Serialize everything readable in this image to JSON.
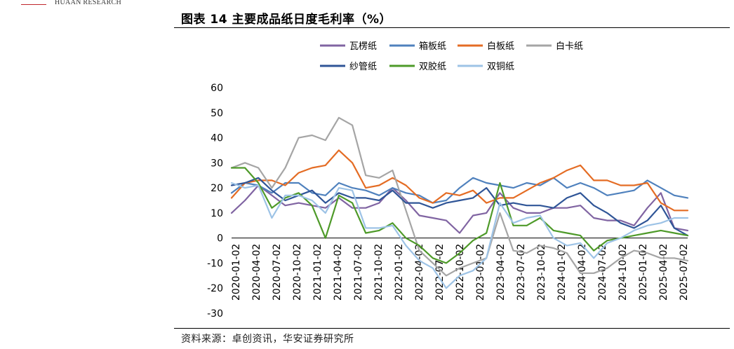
{
  "header": {
    "brand": "HUAAN RESEARCH",
    "title": "图表 14 主要成品纸日度毛利率（%）",
    "source": "资料来源：卓创资讯，华安证券研究所"
  },
  "chart_data": {
    "type": "line",
    "title": "主要成品纸日度毛利率（%）",
    "xlabel": "",
    "ylabel": "",
    "ylim": [
      -30,
      60
    ],
    "yticks": [
      -30,
      -20,
      -10,
      0,
      10,
      20,
      30,
      40,
      50,
      60
    ],
    "x_ticks": [
      "2020-01-02",
      "2020-04-02",
      "2020-07-02",
      "2020-10-02",
      "2021-01-02",
      "2021-04-02",
      "2021-07-02",
      "2021-10-02",
      "2022-01-02",
      "2022-04-02",
      "2022-07-02",
      "2022-10-02",
      "2023-01-02",
      "2023-04-02",
      "2023-07-02",
      "2023-10-02",
      "2024-01-02",
      "2024-04-02",
      "2024-07-02",
      "2024-10-02",
      "2025-01-02",
      "2025-04-02",
      "2025-07-02"
    ],
    "x": [
      "2020-01",
      "2020-03",
      "2020-05",
      "2020-07",
      "2020-09",
      "2020-11",
      "2021-01",
      "2021-03",
      "2021-05",
      "2021-07",
      "2021-09",
      "2021-11",
      "2022-01",
      "2022-03",
      "2022-05",
      "2022-07",
      "2022-09",
      "2022-11",
      "2023-01",
      "2023-03",
      "2023-05",
      "2023-07",
      "2023-09",
      "2023-11",
      "2024-01",
      "2024-03",
      "2024-05",
      "2024-07",
      "2024-09",
      "2024-11",
      "2025-01",
      "2025-03",
      "2025-05",
      "2025-07",
      "2025-08"
    ],
    "series": [
      {
        "name": "瓦楞纸",
        "color": "#8064a2",
        "values": [
          10,
          15,
          21,
          17,
          13,
          14,
          13,
          12,
          16,
          12,
          12,
          14,
          20,
          15,
          9,
          8,
          7,
          2,
          9,
          10,
          18,
          12,
          10,
          10,
          12,
          12,
          13,
          8,
          7,
          7,
          5,
          12,
          18,
          4,
          3
        ]
      },
      {
        "name": "箱板纸",
        "color": "#4f81bd",
        "values": [
          18,
          22,
          21,
          18,
          22,
          22,
          18,
          17,
          22,
          20,
          19,
          17,
          20,
          18,
          17,
          14,
          15,
          20,
          24,
          22,
          21,
          20,
          22,
          21,
          24,
          20,
          22,
          20,
          17,
          18,
          19,
          23,
          20,
          17,
          16
        ]
      },
      {
        "name": "白板纸",
        "color": "#e46c24",
        "values": [
          16,
          22,
          23,
          23,
          21,
          26,
          28,
          29,
          35,
          30,
          20,
          21,
          24,
          21,
          16,
          14,
          18,
          17,
          19,
          14,
          16,
          16,
          19,
          22,
          24,
          27,
          29,
          23,
          23,
          21,
          21,
          22,
          14,
          11,
          11
        ]
      },
      {
        "name": "白卡纸",
        "color": "#a5a5a5",
        "values": [
          28,
          30,
          28,
          20,
          28,
          40,
          41,
          39,
          48,
          45,
          25,
          24,
          27,
          11,
          -5,
          -10,
          -15,
          -12,
          -10,
          -8,
          10,
          -5,
          -6,
          -3,
          -4,
          -6,
          -14,
          -14,
          -12,
          -8,
          -5,
          -6,
          -8,
          -8,
          -9
        ]
      },
      {
        "name": "纱管纸",
        "color": "#2f5597",
        "values": [
          21,
          22,
          24,
          19,
          15,
          17,
          19,
          14,
          18,
          16,
          16,
          15,
          19,
          14,
          14,
          12,
          14,
          15,
          16,
          20,
          13,
          14,
          13,
          13,
          12,
          16,
          18,
          13,
          10,
          6,
          4,
          7,
          13,
          4,
          1
        ]
      },
      {
        "name": "双胶纸",
        "color": "#4e9a29",
        "values": [
          28,
          28,
          22,
          12,
          16,
          18,
          13,
          0,
          17,
          14,
          2,
          3,
          6,
          0,
          -3,
          -8,
          -10,
          -6,
          -1,
          2,
          22,
          5,
          5,
          8,
          3,
          2,
          1,
          -5,
          -1,
          0,
          1,
          2,
          3,
          2,
          1
        ]
      },
      {
        "name": "双铜纸",
        "color": "#9dc3e6",
        "values": [
          22,
          20,
          21,
          8,
          17,
          17,
          15,
          10,
          20,
          19,
          4,
          4,
          5,
          -3,
          -9,
          -12,
          -20,
          -15,
          -13,
          -8,
          14,
          6,
          8,
          9,
          0,
          -3,
          -2,
          -8,
          -2,
          0,
          3,
          5,
          6,
          8,
          8
        ]
      }
    ],
    "legend": "top",
    "grid": false
  }
}
